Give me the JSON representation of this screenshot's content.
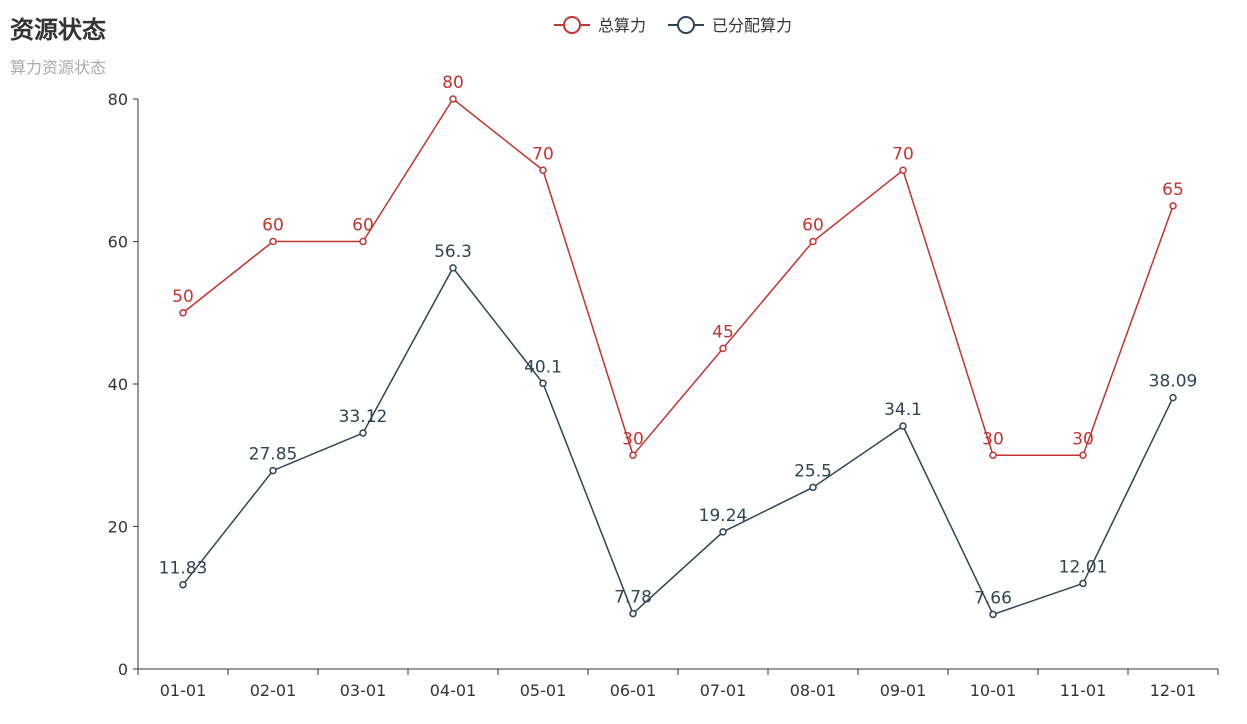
{
  "chart_data": {
    "type": "line",
    "title": "资源状态",
    "subtitle": "算力资源状态",
    "categories": [
      "01-01",
      "02-01",
      "03-01",
      "04-01",
      "05-01",
      "06-01",
      "07-01",
      "08-01",
      "09-01",
      "10-01",
      "11-01",
      "12-01"
    ],
    "series": [
      {
        "name": "总算力",
        "color": "#c23531",
        "values": [
          50,
          60,
          60,
          80,
          70,
          30,
          45,
          60,
          70,
          30,
          30,
          65
        ]
      },
      {
        "name": "已分配算力",
        "color": "#2f4554",
        "values": [
          11.83,
          27.85,
          33.12,
          56.3,
          40.1,
          7.78,
          19.24,
          25.5,
          34.1,
          7.66,
          12.01,
          38.09
        ]
      }
    ],
    "yticks": [
      0,
      20,
      40,
      60,
      80
    ],
    "ylim": [
      0,
      80
    ],
    "legend_position": "top-center",
    "grid": false
  }
}
